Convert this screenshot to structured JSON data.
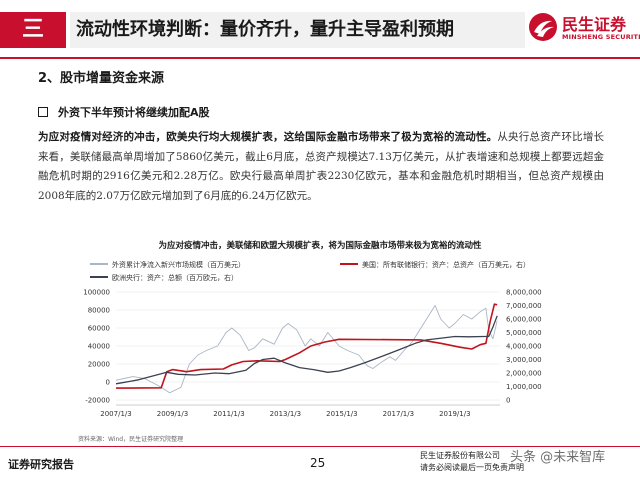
{
  "header": {
    "section_number": "三",
    "title": "流动性环境判断：量价齐升，量升主导盈利预期",
    "logo_cn": "民生证券",
    "logo_en": "MINSHENG SECURITIES"
  },
  "subheading": "2、股市增量资金来源",
  "bullet": "外资下半年预计将继续加配A股",
  "paragraph": {
    "bold_lead": "为应对疫情对经济的冲击，欧美央行均大规模扩表，这给国际金融市场带来了极为宽裕的流动性。",
    "body": "从央行总资产环比增长来看，美联储最高单周增加了5860亿美元，截止6月底，总资产规模达7.13万亿美元，从扩表增速和总规模上都要远超金融危机时期的2916亿美元和2.28万亿。欧央行最高单周扩表2230亿欧元，基本和金融危机时期相当，但总资产规模由2008年底的2.07万亿欧元增加到了6月底的6.24万亿欧元。"
  },
  "chart_data": {
    "type": "line",
    "title": "为应对疫情冲击，美联储和欧盟大规模扩表，将为国际金融市场带来极为宽裕的流动性",
    "source": "资料来源：Wind，民生证券研究院整理",
    "x": [
      "2007/1/3",
      "2009/1/3",
      "2011/1/3",
      "2013/1/3",
      "2015/1/3",
      "2017/1/3",
      "2019/1/3"
    ],
    "left_axis": {
      "ticks": [
        "100000",
        "80000",
        "60000",
        "40000",
        "20000",
        "0",
        "-20000"
      ],
      "ylim": [
        -20000,
        100000
      ]
    },
    "right_axis": {
      "ticks": [
        "8,000,000",
        "7,000,000",
        "6,000,000",
        "5,000,000",
        "4,000,000",
        "3,000,000",
        "2,000,000",
        "1,000,000",
        "0"
      ],
      "ylim": [
        0,
        8000000
      ]
    },
    "legend": [
      {
        "name": "外资累计净流入新兴市场规模（百万美元）",
        "color": "#a9b6c6"
      },
      {
        "name": "美国：所有联储银行：资产：总资产（百万美元，右）",
        "color": "#c0141c"
      },
      {
        "name": "欧洲央行：资产：总额（百万欧元，右）",
        "color": "#3b4150"
      }
    ],
    "series": [
      {
        "name": "外资累计净流入新兴市场规模（百万美元）",
        "axis": "left",
        "points": [
          [
            2007.0,
            2000
          ],
          [
            2007.6,
            6000
          ],
          [
            2008.0,
            4000
          ],
          [
            2008.5,
            -4000
          ],
          [
            2008.9,
            -12000
          ],
          [
            2009.3,
            -6000
          ],
          [
            2009.6,
            20000
          ],
          [
            2009.9,
            30000
          ],
          [
            2010.2,
            35000
          ],
          [
            2010.6,
            40000
          ],
          [
            2010.9,
            55000
          ],
          [
            2011.1,
            60000
          ],
          [
            2011.4,
            52000
          ],
          [
            2011.7,
            35000
          ],
          [
            2011.9,
            38000
          ],
          [
            2012.2,
            48000
          ],
          [
            2012.6,
            42000
          ],
          [
            2012.9,
            60000
          ],
          [
            2013.1,
            65000
          ],
          [
            2013.4,
            58000
          ],
          [
            2013.7,
            40000
          ],
          [
            2013.9,
            48000
          ],
          [
            2014.2,
            40000
          ],
          [
            2014.5,
            55000
          ],
          [
            2014.9,
            40000
          ],
          [
            2015.2,
            35000
          ],
          [
            2015.6,
            30000
          ],
          [
            2015.9,
            18000
          ],
          [
            2016.1,
            15000
          ],
          [
            2016.4,
            22000
          ],
          [
            2016.7,
            28000
          ],
          [
            2016.9,
            24000
          ],
          [
            2017.2,
            35000
          ],
          [
            2017.5,
            45000
          ],
          [
            2017.8,
            60000
          ],
          [
            2018.1,
            75000
          ],
          [
            2018.3,
            85000
          ],
          [
            2018.5,
            70000
          ],
          [
            2018.8,
            60000
          ],
          [
            2019.0,
            65000
          ],
          [
            2019.3,
            75000
          ],
          [
            2019.6,
            70000
          ],
          [
            2019.9,
            78000
          ],
          [
            2020.1,
            82000
          ],
          [
            2020.2,
            58000
          ],
          [
            2020.35,
            48000
          ],
          [
            2020.5,
            68000
          ]
        ]
      },
      {
        "name": "美国：所有联储银行：资产：总资产（百万美元，右）",
        "axis": "right",
        "points": [
          [
            2007.0,
            880000
          ],
          [
            2008.6,
            900000
          ],
          [
            2008.8,
            2100000
          ],
          [
            2009.0,
            2250000
          ],
          [
            2009.5,
            2100000
          ],
          [
            2010.0,
            2250000
          ],
          [
            2010.8,
            2300000
          ],
          [
            2011.1,
            2600000
          ],
          [
            2011.5,
            2850000
          ],
          [
            2012.0,
            2900000
          ],
          [
            2012.8,
            2850000
          ],
          [
            2013.0,
            3000000
          ],
          [
            2013.5,
            3500000
          ],
          [
            2013.9,
            4000000
          ],
          [
            2014.4,
            4300000
          ],
          [
            2014.9,
            4500000
          ],
          [
            2017.8,
            4450000
          ],
          [
            2018.5,
            4200000
          ],
          [
            2019.2,
            3900000
          ],
          [
            2019.6,
            3780000
          ],
          [
            2019.9,
            4100000
          ],
          [
            2020.1,
            4200000
          ],
          [
            2020.25,
            5800000
          ],
          [
            2020.4,
            7100000
          ],
          [
            2020.5,
            7050000
          ]
        ]
      },
      {
        "name": "欧洲央行：资产：总额（百万欧元，右）",
        "axis": "right",
        "points": [
          [
            2007.0,
            1200000
          ],
          [
            2007.8,
            1500000
          ],
          [
            2008.8,
            2050000
          ],
          [
            2009.2,
            1900000
          ],
          [
            2009.8,
            1850000
          ],
          [
            2010.5,
            2000000
          ],
          [
            2011.0,
            1950000
          ],
          [
            2011.6,
            2200000
          ],
          [
            2011.9,
            2700000
          ],
          [
            2012.2,
            3000000
          ],
          [
            2012.6,
            3100000
          ],
          [
            2013.0,
            2750000
          ],
          [
            2013.5,
            2400000
          ],
          [
            2014.0,
            2250000
          ],
          [
            2014.5,
            2050000
          ],
          [
            2014.9,
            2150000
          ],
          [
            2015.3,
            2400000
          ],
          [
            2015.8,
            2750000
          ],
          [
            2016.5,
            3300000
          ],
          [
            2017.0,
            3700000
          ],
          [
            2017.6,
            4200000
          ],
          [
            2018.0,
            4450000
          ],
          [
            2018.6,
            4600000
          ],
          [
            2019.0,
            4700000
          ],
          [
            2019.5,
            4680000
          ],
          [
            2020.0,
            4700000
          ],
          [
            2020.2,
            4700000
          ],
          [
            2020.35,
            5400000
          ],
          [
            2020.5,
            6240000
          ]
        ]
      }
    ]
  },
  "footer": {
    "left": "证券研究报告",
    "page": "25",
    "right_line1": "民生证券股份有限公司",
    "right_line2": "请务必阅读最后一页免责声明",
    "watermark": "头条 @未来智库"
  }
}
